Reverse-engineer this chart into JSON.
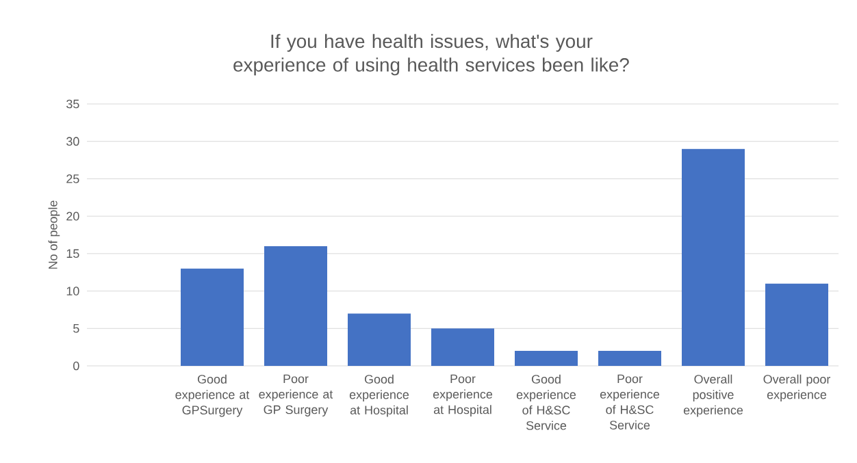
{
  "chart_data": {
    "type": "bar",
    "title": "If you have health issues, what's your experience of using health services been like?",
    "ylabel": "No of people",
    "categories": [
      null,
      "Good experience at GPSurgery",
      "Poor experience at GP Surgery",
      "Good experience at Hospital",
      "Poor experience at Hospital",
      "Good experience of H&SC Service",
      "Poor experience of H&SC Service",
      "Overall positive experience",
      "Overall poor experience"
    ],
    "values": [
      null,
      13,
      16,
      7,
      5,
      2,
      2,
      29,
      11
    ],
    "color": "#4472c4",
    "ylim": [
      0,
      35
    ],
    "yticks": [
      0,
      5,
      10,
      15,
      20,
      25,
      30,
      35
    ],
    "grid": "y"
  }
}
